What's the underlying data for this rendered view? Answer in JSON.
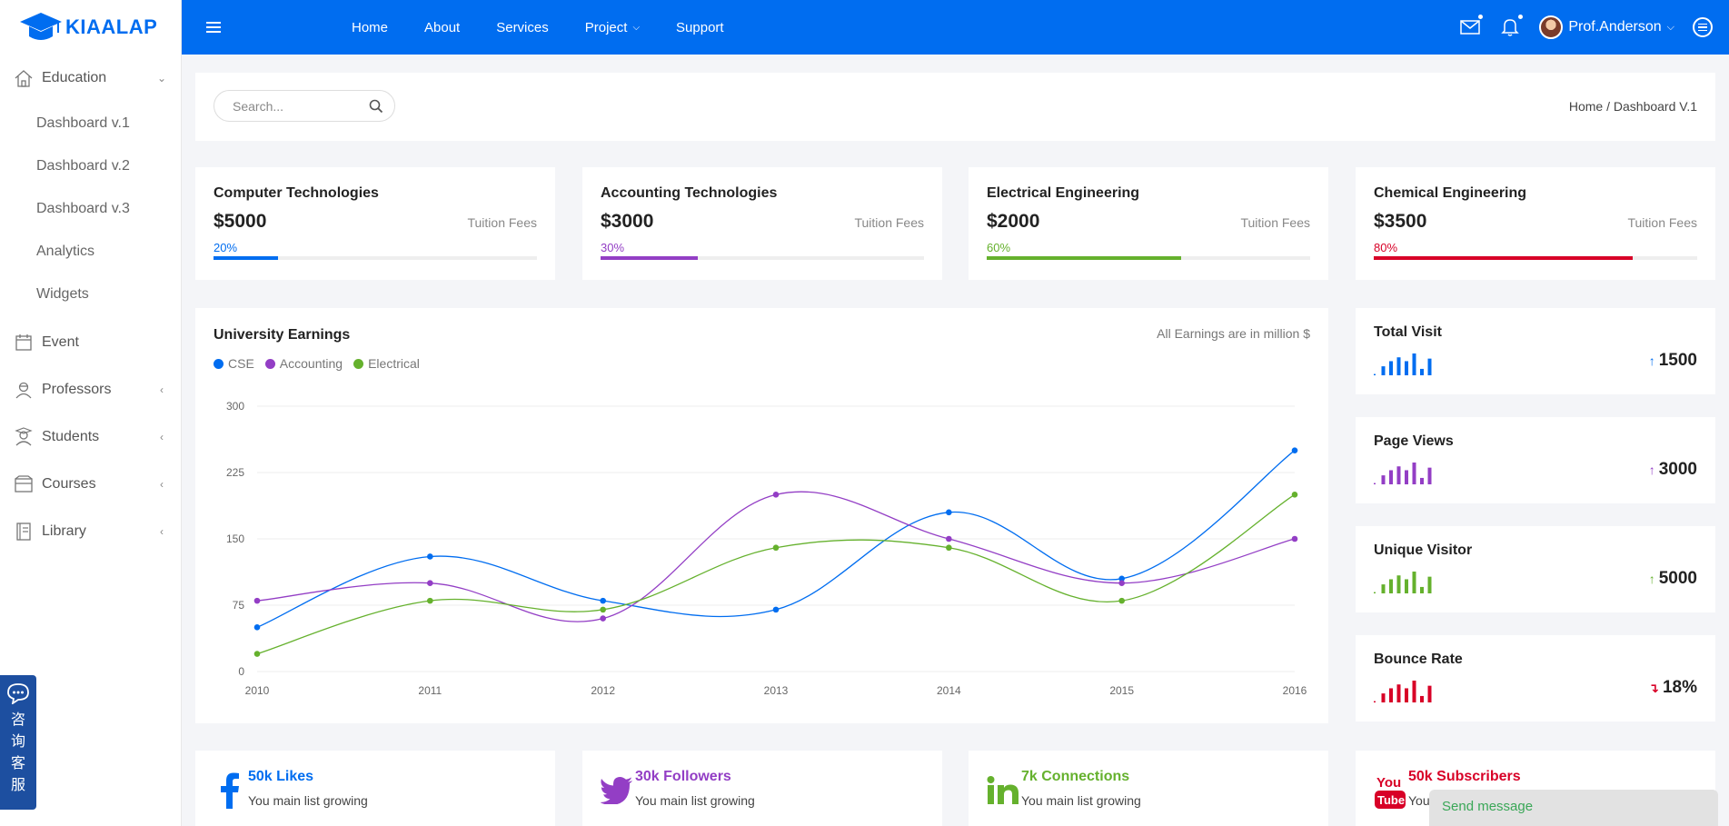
{
  "brand": {
    "name": "KIAALAP"
  },
  "sidebar": {
    "items": [
      {
        "label": "Education",
        "icon": "home-icon",
        "expanded": true,
        "children": [
          "Dashboard v.1",
          "Dashboard v.2",
          "Dashboard v.3",
          "Analytics",
          "Widgets"
        ]
      },
      {
        "label": "Event",
        "icon": "calendar-icon"
      },
      {
        "label": "Professors",
        "icon": "professor-icon"
      },
      {
        "label": "Students",
        "icon": "student-icon"
      },
      {
        "label": "Courses",
        "icon": "courses-icon"
      },
      {
        "label": "Library",
        "icon": "library-icon"
      }
    ]
  },
  "topbar": {
    "nav": [
      "Home",
      "About",
      "Services",
      "Project",
      "Support"
    ],
    "user": "Prof.Anderson"
  },
  "search": {
    "placeholder": "Search..."
  },
  "breadcrumb": "Home / Dashboard V.1",
  "stats": [
    {
      "title": "Computer Technologies",
      "amount": "$5000",
      "sub": "Tuition Fees",
      "pct_label": "20%",
      "pct": 0.2,
      "color": "#006df0"
    },
    {
      "title": "Accounting Technologies",
      "amount": "$3000",
      "sub": "Tuition Fees",
      "pct_label": "30%",
      "pct": 0.3,
      "color": "#933ec5"
    },
    {
      "title": "Electrical Engineering",
      "amount": "$2000",
      "sub": "Tuition Fees",
      "pct_label": "60%",
      "pct": 0.6,
      "color": "#65b12d"
    },
    {
      "title": "Chemical Engineering",
      "amount": "$3500",
      "sub": "Tuition Fees",
      "pct_label": "80%",
      "pct": 0.8,
      "color": "#d80027"
    }
  ],
  "chart_data": {
    "type": "line",
    "title": "University Earnings",
    "note": "All Earnings are in million $",
    "x": [
      "2010",
      "2011",
      "2012",
      "2013",
      "2014",
      "2015",
      "2016"
    ],
    "ylim": [
      0,
      300
    ],
    "yticks": [
      "0",
      "75",
      "150",
      "225",
      "300"
    ],
    "grid": true,
    "legend_position": "top-left",
    "series": [
      {
        "name": "CSE",
        "color": "#006df0",
        "values": [
          50,
          130,
          80,
          70,
          180,
          105,
          250
        ]
      },
      {
        "name": "Accounting",
        "color": "#933ec5",
        "values": [
          80,
          100,
          60,
          200,
          150,
          100,
          150
        ]
      },
      {
        "name": "Electrical",
        "color": "#65b12d",
        "values": [
          20,
          80,
          70,
          140,
          140,
          80,
          200
        ]
      }
    ]
  },
  "minis": [
    {
      "title": "Total Visit",
      "value": "1500",
      "trend": "up",
      "color": "#006df0",
      "bars": [
        1,
        7,
        11,
        14,
        11,
        17,
        5,
        13
      ]
    },
    {
      "title": "Page Views",
      "value": "3000",
      "trend": "up",
      "color": "#933ec5",
      "bars": [
        1,
        7,
        11,
        14,
        11,
        17,
        5,
        13
      ]
    },
    {
      "title": "Unique Visitor",
      "value": "5000",
      "trend": "up",
      "color": "#65b12d",
      "bars": [
        1,
        7,
        11,
        14,
        11,
        17,
        5,
        13
      ]
    },
    {
      "title": "Bounce Rate",
      "value": "18%",
      "trend": "down",
      "color": "#d80027",
      "bars": [
        1,
        7,
        11,
        14,
        11,
        17,
        5,
        13
      ]
    }
  ],
  "socials": [
    {
      "title": "50k Likes",
      "sub": "You main list growing",
      "icon": "facebook-icon",
      "color": "#006df0"
    },
    {
      "title": "30k Followers",
      "sub": "You main list growing",
      "icon": "twitter-icon",
      "color": "#933ec5"
    },
    {
      "title": "7k Connections",
      "sub": "You main list growing",
      "icon": "linkedin-icon",
      "color": "#65b12d"
    },
    {
      "title": "50k Subscribers",
      "sub": "You main list growing",
      "icon": "youtube-icon",
      "color": "#d80027"
    }
  ],
  "consult": {
    "label": "咨询客服"
  },
  "chat": {
    "label": "Send message"
  }
}
